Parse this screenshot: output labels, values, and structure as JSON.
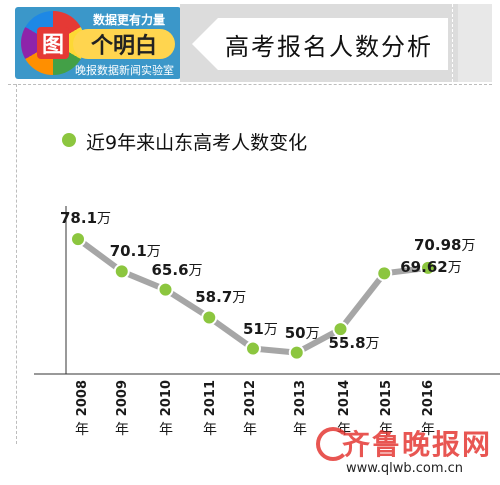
{
  "header": {
    "title": "高考报名人数分析",
    "logo": {
      "top_text": "数据更有力量",
      "main_text": "个明白",
      "badge_char": "图",
      "bottom_text": "晚报数据新闻实验室"
    }
  },
  "legend": {
    "label": "近9年来山东高考人数变化"
  },
  "chart_data": {
    "type": "line",
    "title": "近9年来山东高考人数变化",
    "categories": [
      "2008",
      "2009",
      "2010",
      "2011",
      "2012",
      "2013",
      "2014",
      "2015",
      "2016"
    ],
    "series": [
      {
        "values": [
          78.1,
          70.1,
          65.6,
          58.7,
          51,
          50,
          55.8,
          69.62,
          70.98
        ]
      }
    ],
    "value_labels": [
      "78.1",
      "70.1",
      "65.6",
      "58.7",
      "51",
      "50",
      "55.8",
      "69.62",
      "70.98"
    ],
    "value_unit": "万",
    "category_suffix": "年",
    "ylim": [
      40,
      90
    ],
    "colors": {
      "line": "#a6a6a6",
      "marker": "#8cc63f"
    },
    "grid": false
  },
  "watermark": {
    "brand": "齐鲁晚报网",
    "url": "www.qlwb.com.cn"
  }
}
